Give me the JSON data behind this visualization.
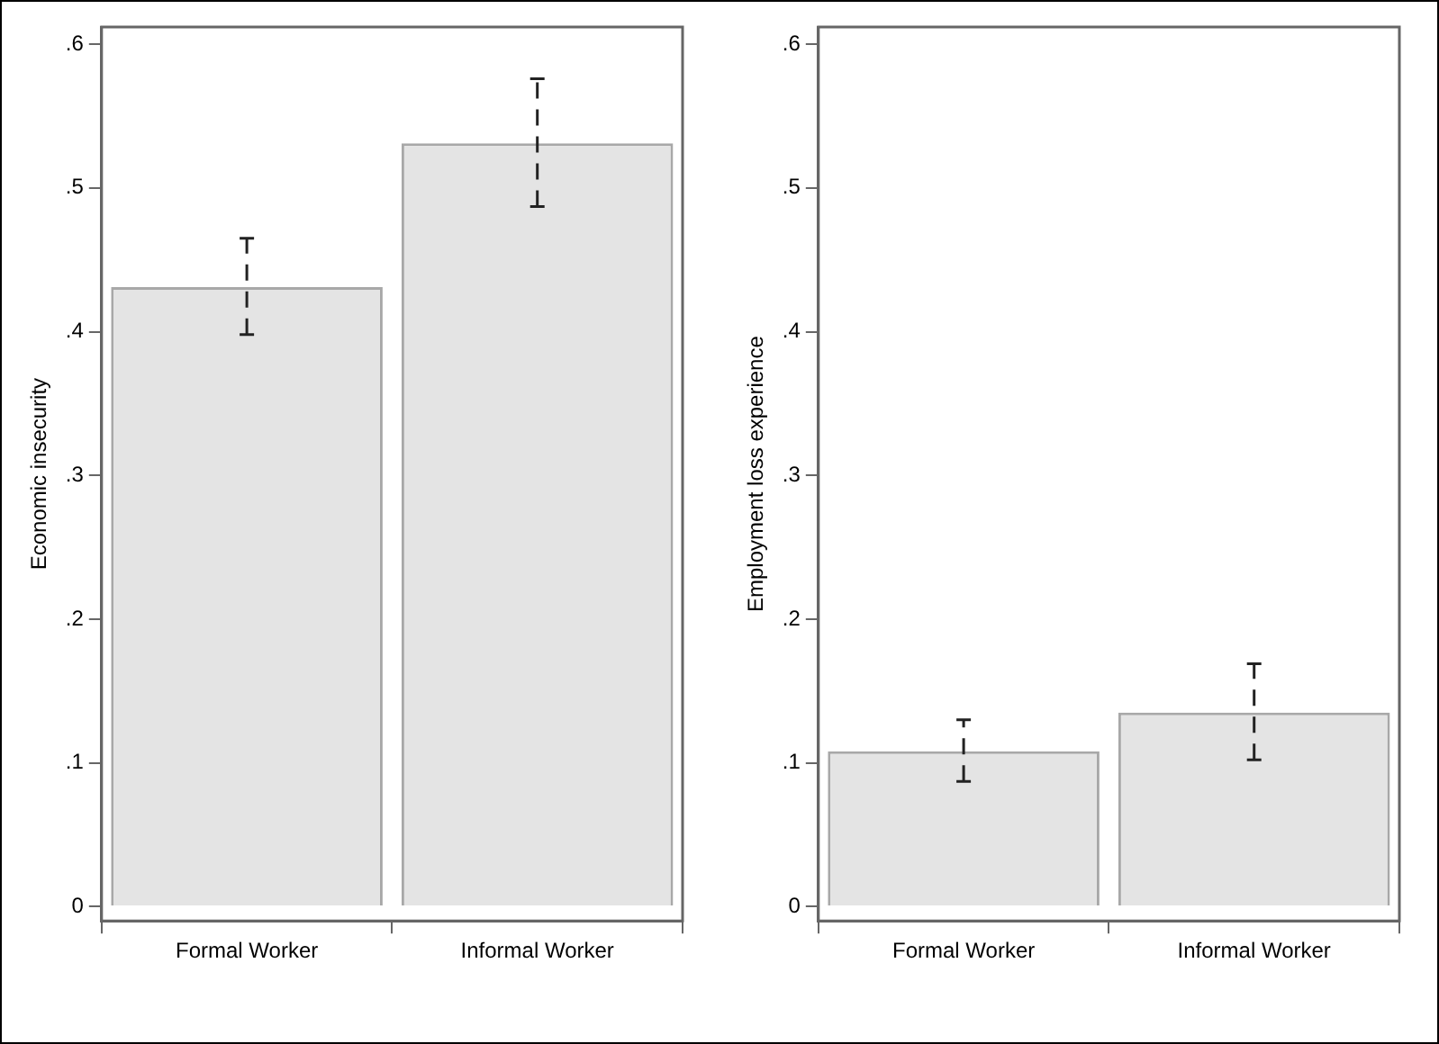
{
  "chart_data": [
    {
      "type": "bar",
      "ylabel": "Economic insecurity",
      "categories": [
        "Formal Worker",
        "Informal Worker"
      ],
      "values": [
        0.431,
        0.531
      ],
      "color": "#e4e4e4",
      "errors": [
        [
          0.398,
          0.465
        ],
        [
          0.487,
          0.576
        ]
      ],
      "ylim": [
        -0.01,
        0.612
      ],
      "yticks": [
        {
          "value": 0,
          "label": "0"
        },
        {
          "value": 0.1,
          "label": ".1"
        },
        {
          "value": 0.2,
          "label": ".2"
        },
        {
          "value": 0.3,
          "label": ".3"
        },
        {
          "value": 0.4,
          "label": ".4"
        },
        {
          "value": 0.5,
          "label": ".5"
        },
        {
          "value": 0.6,
          "label": ".6"
        }
      ],
      "grid": false
    },
    {
      "type": "bar",
      "ylabel": "Employment loss experience",
      "categories": [
        "Formal Worker",
        "Informal Worker"
      ],
      "values": [
        0.108,
        0.135
      ],
      "color": "#e4e4e4",
      "errors": [
        [
          0.087,
          0.13
        ],
        [
          0.102,
          0.169
        ]
      ],
      "ylim": [
        -0.01,
        0.612
      ],
      "yticks": [
        {
          "value": 0,
          "label": "0"
        },
        {
          "value": 0.1,
          "label": ".1"
        },
        {
          "value": 0.2,
          "label": ".2"
        },
        {
          "value": 0.3,
          "label": ".3"
        },
        {
          "value": 0.4,
          "label": ".4"
        },
        {
          "value": 0.5,
          "label": ".5"
        },
        {
          "value": 0.6,
          "label": ".6"
        }
      ],
      "grid": false
    }
  ]
}
